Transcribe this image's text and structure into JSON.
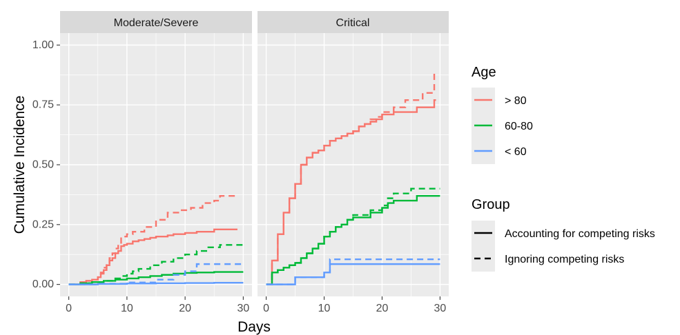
{
  "chart_data": {
    "type": "line",
    "xlabel": "Days",
    "ylabel": "Cumulative Incidence",
    "xlim": [
      -1.5,
      31.5
    ],
    "ylim": [
      -0.05,
      1.05
    ],
    "x_ticks": [
      0,
      10,
      20,
      30
    ],
    "y_ticks": [
      0.0,
      0.25,
      0.5,
      0.75,
      1.0
    ],
    "x_tick_labels": [
      "0",
      "10",
      "20",
      "30"
    ],
    "y_tick_labels": [
      "0.00",
      "0.25",
      "0.50",
      "0.75",
      "1.00"
    ],
    "grid": true,
    "step": true,
    "panels": [
      {
        "strip": "Moderate/Severe",
        "series": [
          {
            "age": "> 80",
            "group": "Accounting for competing risks",
            "x": [
              0,
              2,
              3,
              4,
              5,
              5.5,
              6,
              6.5,
              7,
              7.5,
              8,
              8.5,
              9,
              9.5,
              10,
              11,
              12,
              13,
              14,
              15,
              17,
              18,
              20,
              22,
              25,
              29
            ],
            "y": [
              0,
              0.01,
              0.015,
              0.02,
              0.03,
              0.045,
              0.06,
              0.08,
              0.1,
              0.11,
              0.13,
              0.14,
              0.16,
              0.165,
              0.17,
              0.18,
              0.185,
              0.19,
              0.195,
              0.2,
              0.205,
              0.21,
              0.215,
              0.22,
              0.23,
              0.23
            ]
          },
          {
            "age": "> 80",
            "group": "Ignoring competing risks",
            "x": [
              0,
              2,
              3,
              4,
              5,
              5.5,
              6,
              6.5,
              7,
              7.5,
              8,
              8.5,
              9,
              10,
              11,
              13,
              15,
              17,
              19,
              21,
              23,
              25,
              26,
              29
            ],
            "y": [
              0,
              0.01,
              0.015,
              0.02,
              0.035,
              0.05,
              0.07,
              0.09,
              0.11,
              0.13,
              0.15,
              0.17,
              0.2,
              0.21,
              0.22,
              0.24,
              0.27,
              0.3,
              0.31,
              0.32,
              0.34,
              0.35,
              0.37,
              0.37
            ]
          },
          {
            "age": "60-80",
            "group": "Accounting for competing risks",
            "x": [
              0,
              2,
              4,
              6,
              8,
              10,
              12,
              14,
              16,
              18,
              20,
              22,
              25,
              30
            ],
            "y": [
              0,
              0.005,
              0.01,
              0.015,
              0.02,
              0.025,
              0.03,
              0.035,
              0.04,
              0.045,
              0.048,
              0.05,
              0.052,
              0.052
            ]
          },
          {
            "age": "60-80",
            "group": "Ignoring competing risks",
            "x": [
              0,
              2,
              4,
              6,
              8,
              9,
              10,
              11,
              12,
              14,
              16,
              18,
              20,
              22,
              24,
              26,
              30
            ],
            "y": [
              0,
              0.005,
              0.01,
              0.015,
              0.025,
              0.035,
              0.045,
              0.055,
              0.065,
              0.08,
              0.095,
              0.11,
              0.125,
              0.14,
              0.155,
              0.165,
              0.165
            ]
          },
          {
            "age": "< 60",
            "group": "Accounting for competing risks",
            "x": [
              0,
              5,
              10,
              15,
              20,
              25,
              30
            ],
            "y": [
              0,
              0.002,
              0.004,
              0.005,
              0.006,
              0.007,
              0.007
            ]
          },
          {
            "age": "< 60",
            "group": "Ignoring competing risks",
            "x": [
              0,
              5,
              10,
              15,
              18,
              20,
              22,
              30
            ],
            "y": [
              0,
              0.003,
              0.008,
              0.02,
              0.04,
              0.055,
              0.085,
              0.085
            ]
          }
        ]
      },
      {
        "strip": "Critical",
        "series": [
          {
            "age": "> 80",
            "group": "Accounting for competing risks",
            "x": [
              0,
              1,
              2,
              3,
              4,
              5,
              6,
              7,
              8,
              9,
              10,
              11,
              12,
              13,
              14,
              15,
              16,
              17,
              18,
              19,
              20,
              22,
              25,
              26,
              27,
              29,
              29.3
            ],
            "y": [
              0,
              0.1,
              0.21,
              0.3,
              0.36,
              0.42,
              0.5,
              0.53,
              0.55,
              0.56,
              0.58,
              0.6,
              0.61,
              0.62,
              0.63,
              0.64,
              0.66,
              0.67,
              0.68,
              0.69,
              0.71,
              0.72,
              0.72,
              0.74,
              0.74,
              0.77,
              0.77
            ]
          },
          {
            "age": "> 80",
            "group": "Ignoring competing risks",
            "x": [
              0,
              1,
              2,
              3,
              4,
              5,
              6,
              7,
              8,
              9,
              10,
              11,
              12,
              13,
              14,
              15,
              16,
              17,
              18,
              19,
              20,
              22,
              24,
              27,
              29,
              29.3
            ],
            "y": [
              0,
              0.1,
              0.21,
              0.3,
              0.36,
              0.42,
              0.5,
              0.53,
              0.55,
              0.56,
              0.58,
              0.6,
              0.61,
              0.62,
              0.63,
              0.64,
              0.66,
              0.67,
              0.69,
              0.7,
              0.72,
              0.74,
              0.77,
              0.8,
              0.88,
              0.88
            ]
          },
          {
            "age": "60-80",
            "group": "Accounting for competing risks",
            "x": [
              0,
              1,
              2,
              3,
              4,
              5,
              6,
              7,
              8,
              9,
              10,
              11,
              12,
              13,
              14,
              15,
              17,
              18,
              20,
              21,
              22,
              26,
              30
            ],
            "y": [
              0,
              0.05,
              0.06,
              0.07,
              0.08,
              0.09,
              0.11,
              0.13,
              0.15,
              0.17,
              0.2,
              0.22,
              0.24,
              0.25,
              0.27,
              0.28,
              0.28,
              0.3,
              0.32,
              0.34,
              0.35,
              0.37,
              0.37
            ]
          },
          {
            "age": "60-80",
            "group": "Ignoring competing risks",
            "x": [
              0,
              1,
              2,
              3,
              4,
              5,
              6,
              7,
              8,
              9,
              10,
              11,
              12,
              13,
              14,
              15,
              17,
              18,
              20,
              21,
              22,
              25,
              30
            ],
            "y": [
              0,
              0.05,
              0.06,
              0.07,
              0.08,
              0.09,
              0.11,
              0.13,
              0.15,
              0.17,
              0.2,
              0.22,
              0.24,
              0.25,
              0.27,
              0.29,
              0.29,
              0.31,
              0.33,
              0.36,
              0.38,
              0.4,
              0.4
            ]
          },
          {
            "age": "< 60",
            "group": "Accounting for competing risks",
            "x": [
              0,
              5,
              10,
              11,
              30
            ],
            "y": [
              0,
              0.03,
              0.05,
              0.085,
              0.085
            ]
          },
          {
            "age": "< 60",
            "group": "Ignoring competing risks",
            "x": [
              0,
              5,
              10,
              11,
              30
            ],
            "y": [
              0,
              0.03,
              0.05,
              0.105,
              0.105
            ]
          }
        ]
      }
    ],
    "legend": {
      "placement": "right",
      "age_title": "Age",
      "age_items": [
        {
          "label": "> 80",
          "color": "#F8766D"
        },
        {
          "label": "60-80",
          "color": "#00BA38"
        },
        {
          "label": "< 60",
          "color": "#619CFF"
        }
      ],
      "group_title": "Group",
      "group_items": [
        {
          "label": "Accounting for competing risks",
          "linetype": "solid"
        },
        {
          "label": "Ignoring competing risks",
          "linetype": "dashed"
        }
      ]
    }
  }
}
